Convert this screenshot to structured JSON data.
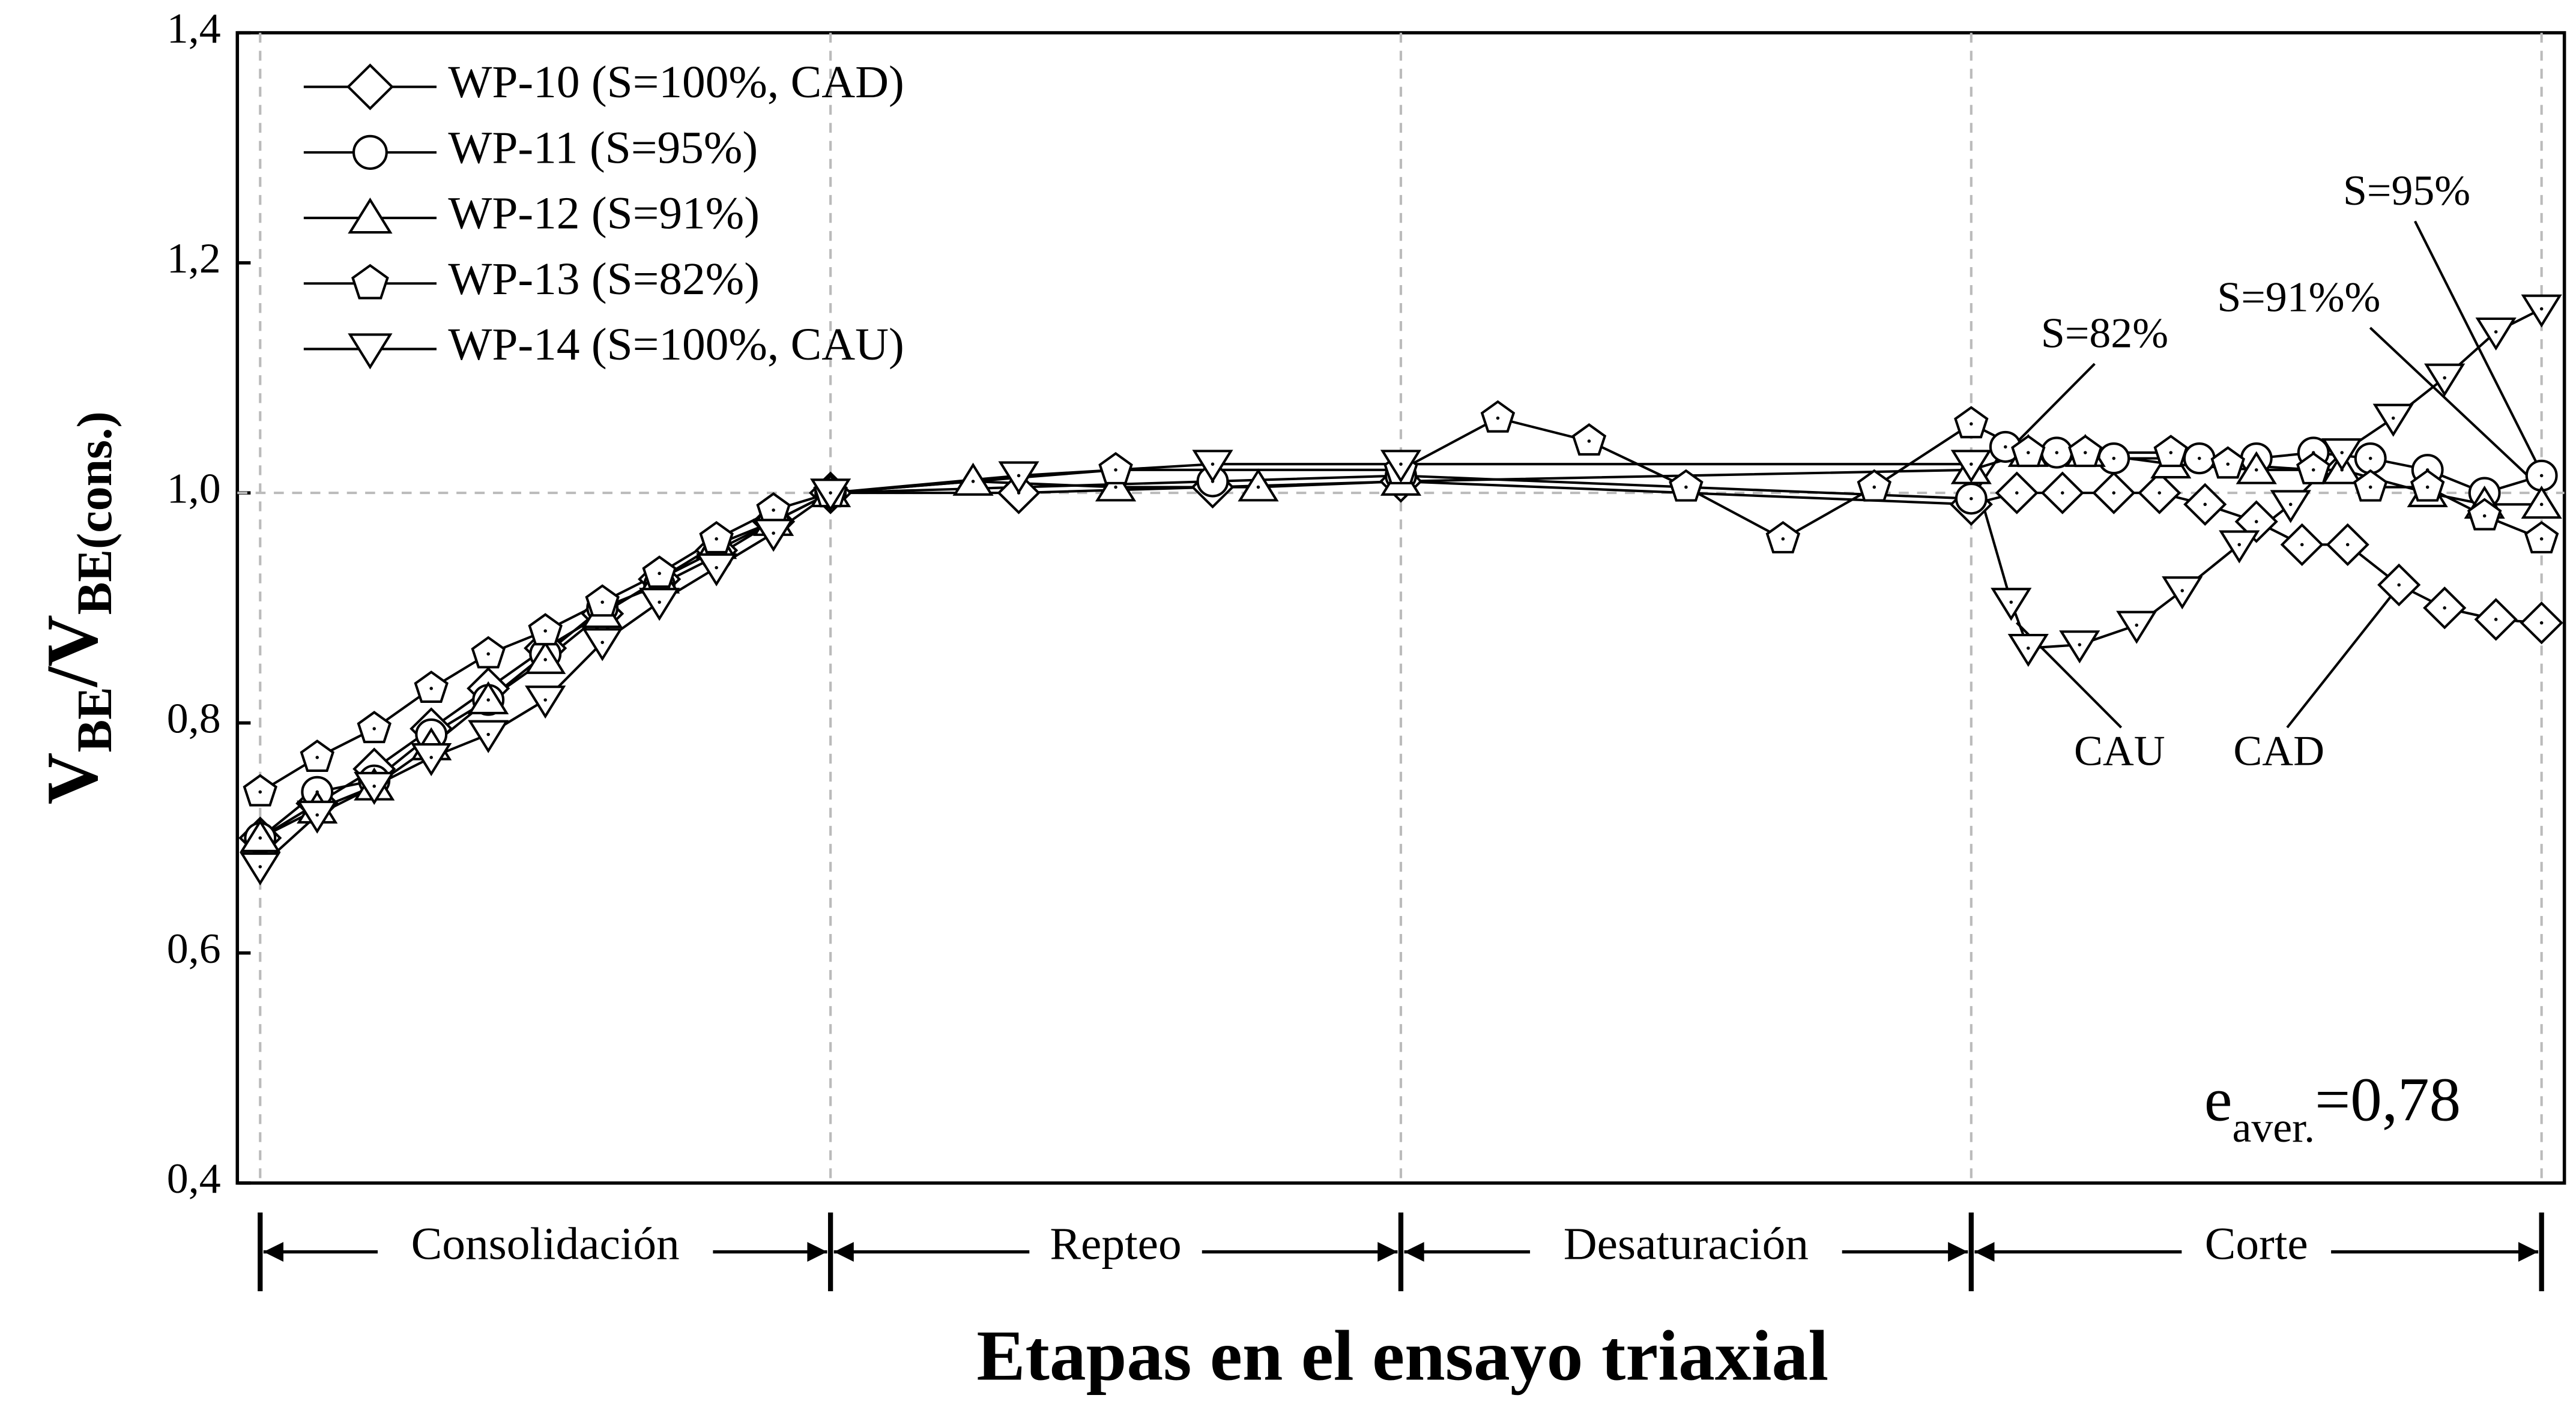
{
  "chart_data": {
    "type": "line",
    "y_label": [
      "V",
      "BE",
      "/V",
      "BE(cons.)"
    ],
    "x_label": "Etapas en el ensayo triaxial",
    "stages": [
      "Consolidación",
      "Repteo",
      "Desaturación",
      "Corte"
    ],
    "xlim": [
      -0.04,
      4.04
    ],
    "xticks": [
      0,
      1,
      2,
      3,
      4
    ],
    "ylim": [
      0.4,
      1.4
    ],
    "yticks": [
      {
        "value": 0.4,
        "label": "0,4"
      },
      {
        "value": 0.6,
        "label": "0,6"
      },
      {
        "value": 0.8,
        "label": "0,8"
      },
      {
        "value": 1.0,
        "label": "1,0"
      },
      {
        "value": 1.2,
        "label": "1,2"
      },
      {
        "value": 1.4,
        "label": "1,4"
      }
    ],
    "grid": true,
    "legend": "upper left",
    "series": [
      {
        "name": "WP-10 (S=100%, CAD)",
        "color": "#000000",
        "marker": "diamond",
        "x": [
          0,
          0.1,
          0.2,
          0.3,
          0.4,
          0.5,
          0.6,
          0.7,
          0.8,
          0.9,
          1.0,
          1.33,
          1.67,
          2.0,
          3.0,
          3.08,
          3.16,
          3.25,
          3.33,
          3.41,
          3.5,
          3.58,
          3.66,
          3.75,
          3.83,
          3.92,
          4.0
        ],
        "values": [
          0.7,
          0.73,
          0.76,
          0.795,
          0.83,
          0.865,
          0.895,
          0.925,
          0.95,
          0.975,
          1.0,
          1.0,
          1.005,
          1.01,
          0.99,
          1.0,
          1.0,
          1.0,
          1.0,
          0.99,
          0.975,
          0.955,
          0.955,
          0.92,
          0.9,
          0.89,
          0.887
        ]
      },
      {
        "name": "WP-11 (S=95%)",
        "color": "#000000",
        "marker": "circle",
        "x": [
          0,
          0.1,
          0.2,
          0.3,
          0.4,
          0.5,
          0.6,
          0.7,
          0.8,
          0.9,
          1.0,
          1.67,
          2.0,
          3.0,
          3.06,
          3.15,
          3.25,
          3.4,
          3.5,
          3.6,
          3.7,
          3.8,
          3.9,
          4.0
        ],
        "values": [
          0.7,
          0.74,
          0.75,
          0.79,
          0.82,
          0.86,
          0.9,
          0.92,
          0.945,
          0.975,
          1.0,
          1.01,
          1.015,
          0.995,
          1.04,
          1.035,
          1.03,
          1.03,
          1.03,
          1.035,
          1.03,
          1.02,
          1.0,
          1.015
        ]
      },
      {
        "name": "WP-12 (S=91%)",
        "color": "#000000",
        "marker": "triangle",
        "x": [
          0,
          0.1,
          0.2,
          0.3,
          0.4,
          0.5,
          0.6,
          0.7,
          0.8,
          0.9,
          1.0,
          1.25,
          1.5,
          1.75,
          2.0,
          3.0,
          3.1,
          3.2,
          3.35,
          3.5,
          3.65,
          3.8,
          3.9,
          4.0
        ],
        "values": [
          0.7,
          0.725,
          0.745,
          0.78,
          0.82,
          0.855,
          0.895,
          0.925,
          0.955,
          0.975,
          1.0,
          1.01,
          1.005,
          1.005,
          1.01,
          1.02,
          1.035,
          1.035,
          1.025,
          1.02,
          1.02,
          1.0,
          0.99,
          0.99
        ]
      },
      {
        "name": "WP-13 (S=82%)",
        "color": "#000000",
        "marker": "pentagon",
        "x": [
          0,
          0.1,
          0.2,
          0.3,
          0.4,
          0.5,
          0.6,
          0.7,
          0.8,
          0.9,
          1.0,
          1.5,
          2.0,
          2.17,
          2.33,
          2.5,
          2.67,
          2.83,
          3.0,
          3.1,
          3.2,
          3.35,
          3.45,
          3.6,
          3.7,
          3.8,
          3.9,
          4.0
        ],
        "values": [
          0.74,
          0.77,
          0.795,
          0.83,
          0.86,
          0.88,
          0.905,
          0.93,
          0.96,
          0.985,
          1.0,
          1.02,
          1.02,
          1.065,
          1.045,
          1.005,
          0.96,
          1.005,
          1.06,
          1.035,
          1.035,
          1.035,
          1.025,
          1.02,
          1.005,
          1.005,
          0.98,
          0.96
        ]
      },
      {
        "name": "WP-14 (S=100%, CAU)",
        "color": "#000000",
        "marker": "nabla",
        "x": [
          0,
          0.1,
          0.2,
          0.3,
          0.4,
          0.5,
          0.6,
          0.7,
          0.8,
          0.9,
          1.0,
          1.33,
          1.67,
          2.0,
          3.0,
          3.07,
          3.1,
          3.19,
          3.29,
          3.37,
          3.47,
          3.56,
          3.65,
          3.74,
          3.83,
          3.92,
          4.0
        ],
        "values": [
          0.675,
          0.72,
          0.745,
          0.77,
          0.79,
          0.82,
          0.87,
          0.905,
          0.935,
          0.965,
          1.0,
          1.015,
          1.025,
          1.025,
          1.025,
          0.905,
          0.865,
          0.868,
          0.885,
          0.915,
          0.955,
          0.99,
          1.035,
          1.065,
          1.1,
          1.14,
          1.16
        ]
      }
    ],
    "annotations": [
      "S=82%",
      "S=91%%",
      "S=95%",
      "CAU",
      "CAD"
    ],
    "e_label": [
      "e",
      "aver.",
      "=0,78"
    ]
  }
}
